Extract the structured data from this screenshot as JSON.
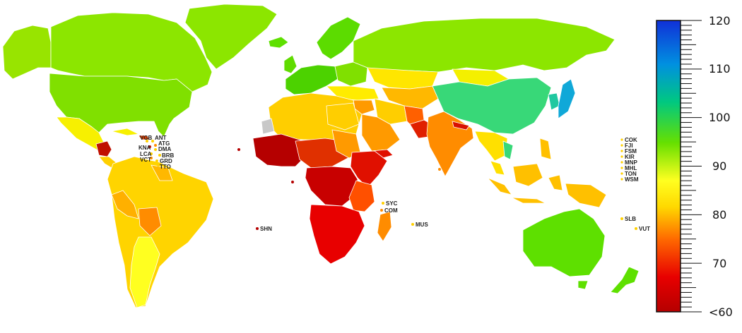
{
  "legend": {
    "ticks": [
      {
        "value": 120,
        "label": "120"
      },
      {
        "value": 110,
        "label": "110"
      },
      {
        "value": 100,
        "label": "100"
      },
      {
        "value": 90,
        "label": "90"
      },
      {
        "value": 80,
        "label": "80"
      },
      {
        "value": 70,
        "label": "70"
      },
      {
        "value": 60,
        "label": "<60"
      }
    ],
    "range": [
      60,
      120
    ],
    "colors": [
      "#b50000",
      "#e80000",
      "#ff6a00",
      "#ffd800",
      "#ffff20",
      "#66e000",
      "#00c880",
      "#0090e0",
      "#1030d8"
    ]
  },
  "caribbean_labels": [
    "VGB",
    "ANT",
    "ATG",
    "KNA",
    "DMA",
    "LCA",
    "BRB",
    "VCT",
    "GRD",
    "TTO"
  ],
  "pacific_labels": [
    "COK",
    "FJI",
    "FSM",
    "KIR",
    "MNP",
    "MHL",
    "TON",
    "WSM"
  ],
  "island_labels": {
    "shn": "SHN",
    "syc": "SYC",
    "com": "COM",
    "mus": "MUS",
    "slb": "SLB",
    "vut": "VUT"
  }
}
